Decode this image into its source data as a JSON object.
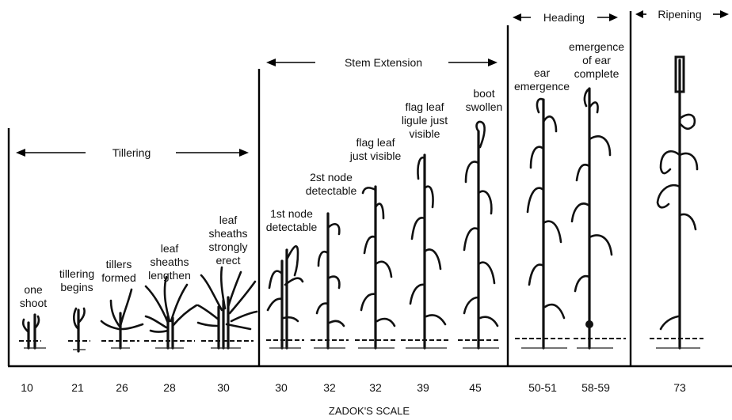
{
  "phases": {
    "tillering": "Tillering",
    "stem_extension": "Stem Extension",
    "heading": "Heading",
    "ripening": "Ripening"
  },
  "stages": [
    {
      "lines": [
        "one",
        "shoot"
      ],
      "code": "10"
    },
    {
      "lines": [
        "tillering",
        "begins"
      ],
      "code": "21"
    },
    {
      "lines": [
        "tillers",
        "formed"
      ],
      "code": "26"
    },
    {
      "lines": [
        "leaf",
        "sheaths",
        "lengthen"
      ],
      "code": "28"
    },
    {
      "lines": [
        "leaf",
        "sheaths",
        "strongly",
        "erect"
      ],
      "code": "30"
    },
    {
      "lines": [
        "1st node",
        "detectable"
      ],
      "code": "30"
    },
    {
      "lines": [
        "2st node",
        "detectable"
      ],
      "code": "32"
    },
    {
      "lines": [
        "flag leaf",
        "just visible"
      ],
      "code": "32"
    },
    {
      "lines": [
        "flag leaf",
        "ligule just",
        "visible"
      ],
      "code": "39"
    },
    {
      "lines": [
        "boot",
        "swollen"
      ],
      "code": "45"
    },
    {
      "lines": [
        "ear",
        "emergence"
      ],
      "code": "50-51"
    },
    {
      "lines": [
        "emergence",
        "of ear",
        "complete"
      ],
      "code": "58-59"
    },
    {
      "lines": [],
      "code": "73"
    }
  ],
  "scale_label": "ZADOK'S SCALE"
}
